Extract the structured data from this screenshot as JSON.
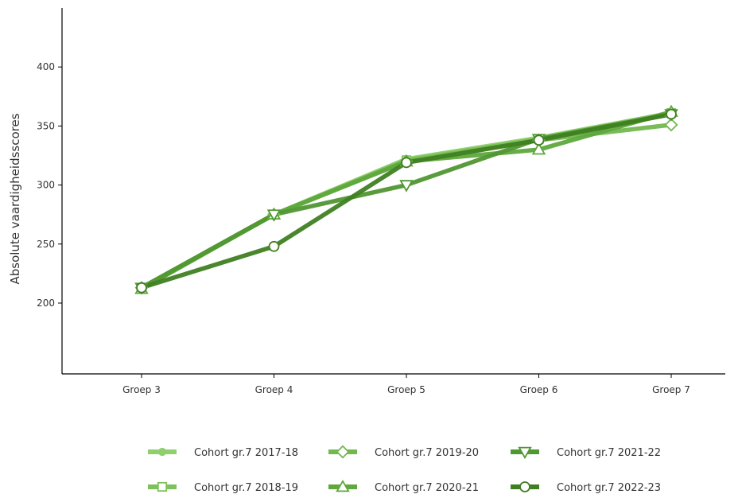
{
  "chart_data": {
    "type": "line",
    "xlabel": "",
    "ylabel": "Absolute vaardigheidsscores",
    "categories": [
      "Groep 3",
      "Groep 4",
      "Groep 5",
      "Groep 6",
      "Groep 7"
    ],
    "ylim": [
      140,
      450
    ],
    "yticks": [
      200,
      250,
      300,
      350,
      400
    ],
    "grid": false,
    "legend_position": "bottom",
    "series": [
      {
        "name": "Cohort gr.7 2017-18",
        "values": [
          213,
          275,
          322,
          340,
          361
        ],
        "color": "#8fcf6e",
        "marker": "circle-filled"
      },
      {
        "name": "Cohort gr.7 2018-19",
        "values": [
          213,
          275,
          321,
          339,
          361
        ],
        "color": "#7cc15b",
        "marker": "square"
      },
      {
        "name": "Cohort gr.7 2019-20",
        "values": [
          213,
          275,
          320,
          338,
          351
        ],
        "color": "#72b84f",
        "marker": "diamond"
      },
      {
        "name": "Cohort gr.7 2020-21",
        "values": [
          212,
          275,
          320,
          330,
          362
        ],
        "color": "#5fa83d",
        "marker": "triangle-up"
      },
      {
        "name": "Cohort gr.7 2021-22",
        "values": [
          213,
          275,
          300,
          339,
          360
        ],
        "color": "#519733",
        "marker": "triangle-down"
      },
      {
        "name": "Cohort gr.7 2022-23",
        "values": [
          213,
          248,
          319,
          338,
          360
        ],
        "color": "#3f7f22",
        "marker": "circle"
      }
    ]
  }
}
